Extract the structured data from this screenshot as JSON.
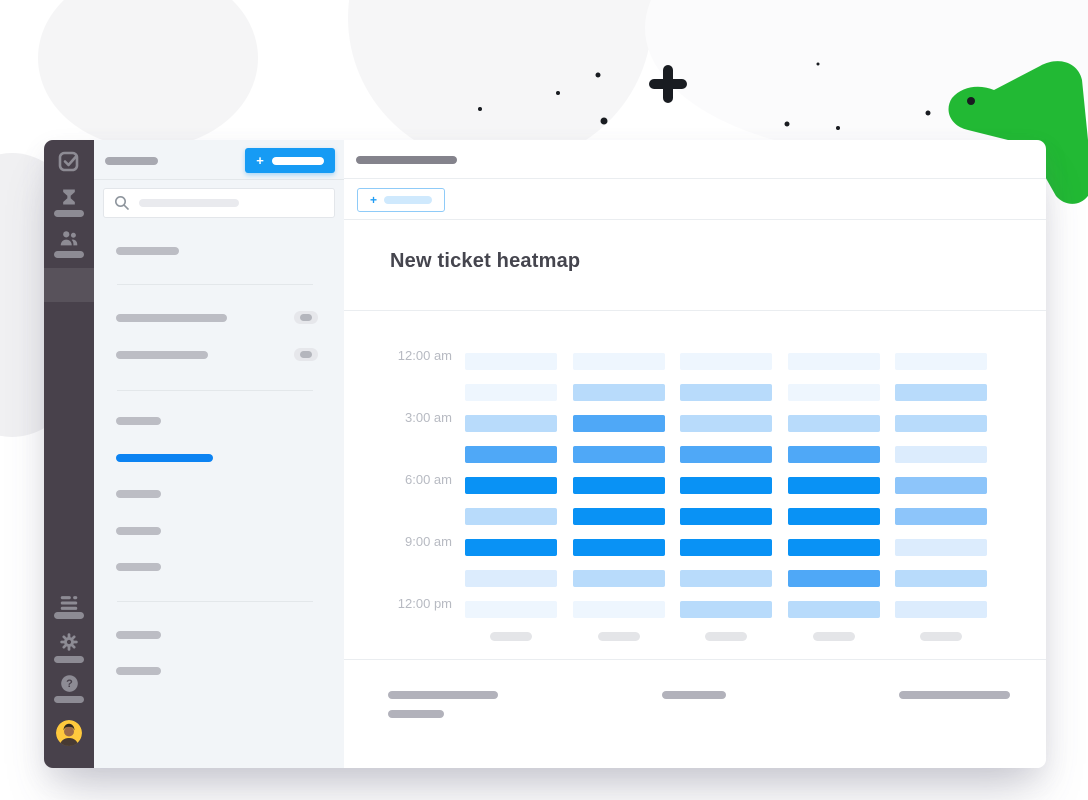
{
  "main": {
    "title": "New ticket heatmap",
    "new_view_button_plus": "+"
  },
  "sidebar": {
    "new_button_plus": "+"
  },
  "rail": {
    "help_glyph": "?"
  },
  "chart_data": {
    "type": "heatmap",
    "title": "New ticket heatmap",
    "y_tick_labels": [
      "12:00 am",
      "3:00 am",
      "6:00 am",
      "9:00 am",
      "12:00 pm"
    ],
    "row_labels": [
      "12:00 am",
      "",
      "3:00 am",
      "",
      "6:00 am",
      "",
      "9:00 am",
      "",
      "12:00 pm"
    ],
    "rows": 9,
    "cols": 5,
    "x_tick_labels": [
      "",
      "",
      "",
      "",
      ""
    ],
    "values": [
      [
        0,
        0,
        0,
        0,
        0
      ],
      [
        0,
        2,
        2,
        0,
        2
      ],
      [
        2,
        4,
        2,
        2,
        2
      ],
      [
        4,
        4,
        4,
        4,
        1
      ],
      [
        5,
        5,
        5,
        5,
        3
      ],
      [
        2,
        5,
        5,
        5,
        3
      ],
      [
        5,
        5,
        5,
        5,
        1
      ],
      [
        1,
        2,
        2,
        4,
        2
      ],
      [
        0,
        0,
        2,
        2,
        1
      ]
    ],
    "value_scale": "0=lowest ticket volume, 5=highest ticket volume",
    "palette": [
      "#eef6fe",
      "#dcecfd",
      "#b8dbfb",
      "#8dc5fa",
      "#4fa8f7",
      "#0992f5"
    ],
    "legend": "none",
    "grid": false
  },
  "colors": {
    "accent_blue": "#169bf4",
    "active_nav_blue": "#0c83f2",
    "dark_sidebar": "#48414b",
    "light_sidebar_bg": "#f2f5f8",
    "green_arrow": "#22b934",
    "avatar_yellow": "#ffc93d"
  },
  "icons": {
    "rail_top": [
      "check-square-icon",
      "tickets-icon",
      "people-icon"
    ],
    "rail_bottom": [
      "reports-icon",
      "gear-icon",
      "help-icon",
      "avatar"
    ],
    "search": "search-icon"
  }
}
